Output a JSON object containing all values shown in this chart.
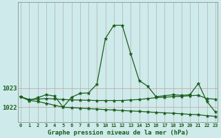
{
  "title": "Graphe pression niveau de la mer (hPa)",
  "bg_color": "#ceeaea",
  "grid_color_v": "#b0b0b0",
  "grid_color_h": "#c0a0a0",
  "line_color": "#1a5c1a",
  "x_labels": [
    "0",
    "1",
    "2",
    "3",
    "4",
    "5",
    "6",
    "7",
    "8",
    "9",
    "10",
    "11",
    "12",
    "13",
    "14",
    "15",
    "16",
    "17",
    "18",
    "19",
    "20",
    "21",
    "22",
    "23"
  ],
  "yticks": [
    1022,
    1023
  ],
  "ylim": [
    1021.2,
    1027.5
  ],
  "xlim": [
    -0.3,
    23.3
  ],
  "series1_x": [
    0,
    1,
    2,
    3,
    4,
    5,
    6,
    7,
    8,
    9,
    10,
    11,
    12,
    13,
    14,
    15,
    16,
    17,
    18,
    19,
    20,
    21,
    22,
    23
  ],
  "series1_y": [
    1022.55,
    1022.35,
    1022.5,
    1022.65,
    1022.58,
    1022.0,
    1022.52,
    1022.72,
    1022.75,
    1023.2,
    1025.6,
    1026.3,
    1026.3,
    1024.8,
    1023.4,
    1023.1,
    1022.55,
    1022.6,
    1022.65,
    1022.62,
    1022.65,
    1023.25,
    1022.3,
    1021.75
  ],
  "series2_x": [
    0,
    1,
    2,
    3,
    4,
    5,
    6,
    7,
    8,
    9,
    10,
    11,
    12,
    13,
    14,
    15,
    16,
    17,
    18,
    19,
    20,
    21,
    22,
    23
  ],
  "series2_y": [
    1022.55,
    1022.4,
    1022.42,
    1022.45,
    1022.43,
    1022.4,
    1022.38,
    1022.37,
    1022.36,
    1022.35,
    1022.35,
    1022.35,
    1022.35,
    1022.38,
    1022.4,
    1022.45,
    1022.5,
    1022.52,
    1022.55,
    1022.57,
    1022.6,
    1022.62,
    1022.45,
    1022.42
  ],
  "series3_x": [
    0,
    1,
    2,
    3,
    4,
    5,
    6,
    7,
    8,
    9,
    10,
    11,
    12,
    13,
    14,
    15,
    16,
    17,
    18,
    19,
    20,
    21,
    22,
    23
  ],
  "series3_y": [
    1022.55,
    1022.35,
    1022.3,
    1022.2,
    1022.1,
    1022.0,
    1021.97,
    1021.95,
    1021.92,
    1021.9,
    1021.87,
    1021.85,
    1021.82,
    1021.8,
    1021.78,
    1021.75,
    1021.72,
    1021.7,
    1021.68,
    1021.65,
    1021.62,
    1021.6,
    1021.55,
    1021.52
  ]
}
